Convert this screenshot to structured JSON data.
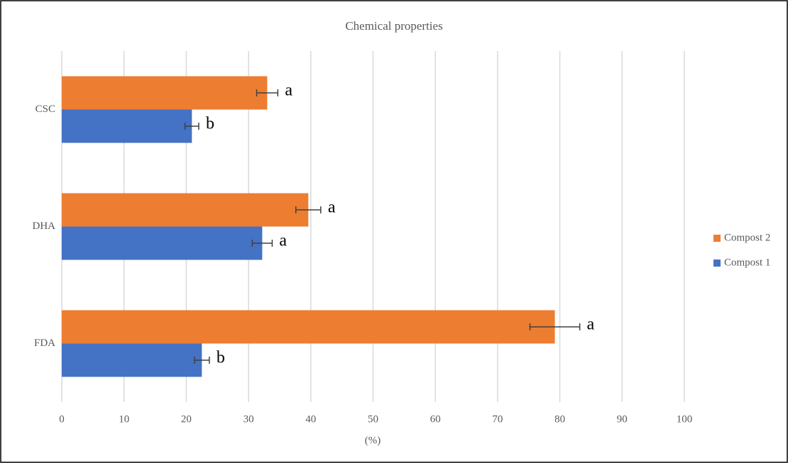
{
  "chart_data": {
    "type": "bar",
    "orientation": "horizontal",
    "title": "Chemical properties",
    "x_label": "(%)",
    "categories": [
      "CSC",
      "DHA",
      "FDA"
    ],
    "series": [
      {
        "name": "Compost 2",
        "color": "#ed7d31",
        "values": [
          33.0,
          39.6,
          79.2
        ],
        "errors": [
          1.7,
          2.0,
          4.0
        ],
        "letters": [
          "a",
          "a",
          "a"
        ]
      },
      {
        "name": "Compost 1",
        "color": "#4472c4",
        "values": [
          20.9,
          32.2,
          22.5
        ],
        "errors": [
          1.1,
          1.6,
          1.2
        ],
        "letters": [
          "b",
          "a",
          "b"
        ]
      }
    ],
    "xlim": [
      0,
      100
    ],
    "xticks": [
      0,
      10,
      20,
      30,
      40,
      50,
      60,
      70,
      80,
      90,
      100
    ],
    "grid": true,
    "legend": "right"
  }
}
